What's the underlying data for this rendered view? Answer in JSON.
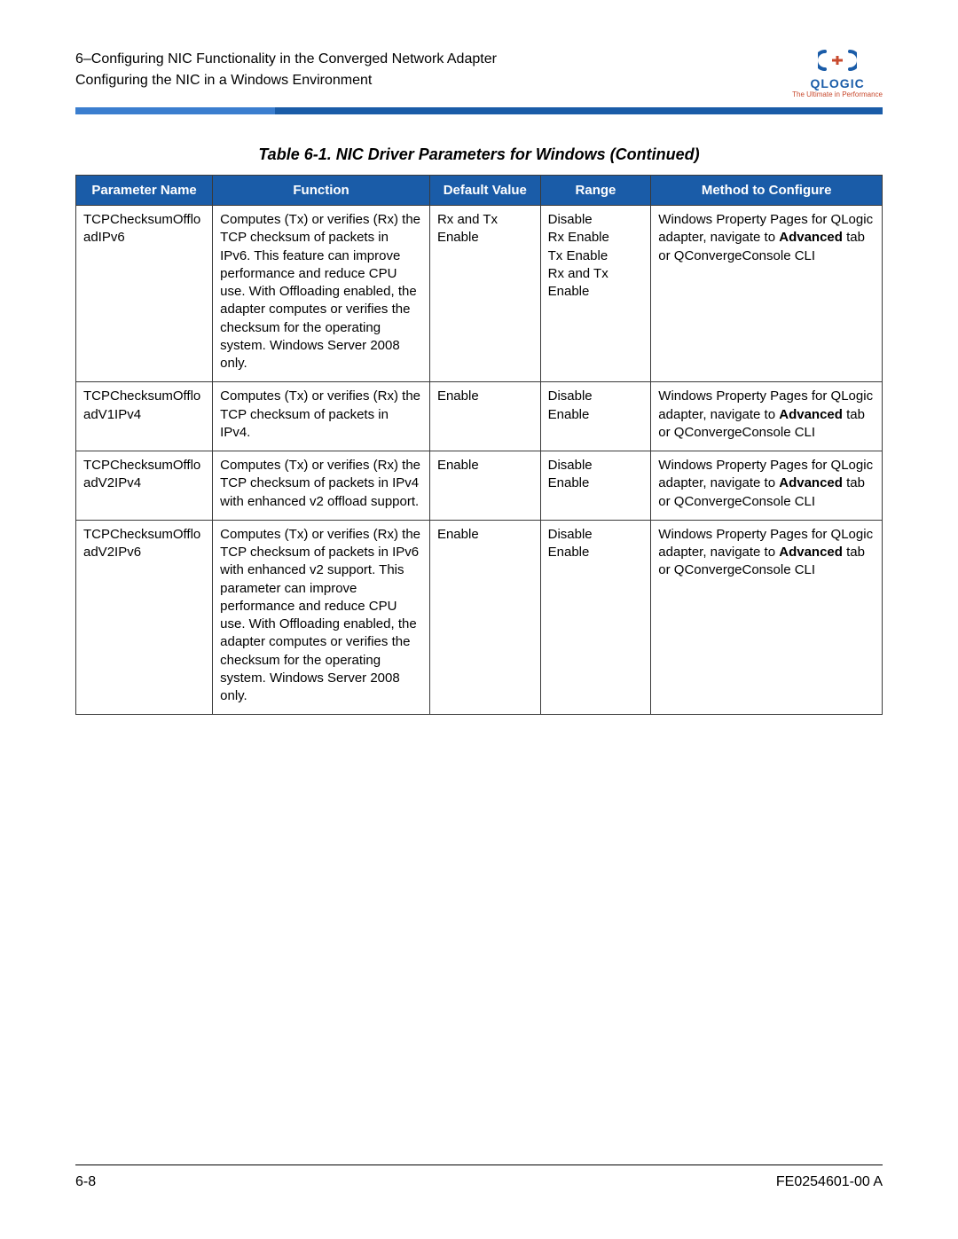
{
  "header": {
    "line1": "6–Configuring NIC Functionality in the Converged Network Adapter",
    "line2": "Configuring the NIC in a Windows Environment"
  },
  "logo": {
    "mark": "ꓛꓘC",
    "name": "QLOGIC",
    "tagline": "The Ultimate in Performance"
  },
  "caption": "Table 6-1. NIC Driver Parameters for Windows  (Continued)",
  "columns": {
    "param": "Parameter Name",
    "func": "Function",
    "def": "Default Value",
    "range": "Range",
    "method": "Method to Configure"
  },
  "method_text": {
    "prefix": "Windows Property Pages for QLogic adapter, navigate to ",
    "bold": "Advanced",
    "suffix": " tab or QConvergeConsole CLI"
  },
  "rows": [
    {
      "param": "TCPChecksumOffloadIPv6",
      "func": "Computes (Tx) or verifies (Rx) the TCP checksum of packets in IPv6. This feature can improve performance and reduce CPU use. With Offloading enabled, the adapter computes or verifies the checksum for the operating system. Windows Server 2008 only.",
      "def": "Rx and Tx Enable",
      "range": "Disable\nRx Enable\nTx Enable\nRx and Tx Enable"
    },
    {
      "param": "TCPChecksumOffloadV1IPv4",
      "func": "Computes (Tx) or verifies (Rx) the TCP checksum of packets in IPv4.",
      "def": "Enable",
      "range": "Disable\nEnable"
    },
    {
      "param": "TCPChecksumOffloadV2IPv4",
      "func": "Computes (Tx) or verifies (Rx) the TCP checksum of packets in IPv4 with enhanced v2 offload support.",
      "def": "Enable",
      "range": "Disable\nEnable"
    },
    {
      "param": "TCPChecksumOffloadV2IPv6",
      "func": "Computes (Tx) or verifies (Rx) the TCP checksum of packets in IPv6 with enhanced v2 support. This parameter can improve performance and reduce CPU use. With Offloading enabled, the adapter computes or verifies the checksum for the operating system. Windows Server 2008 only.",
      "def": "Enable",
      "range": "Disable\nEnable"
    }
  ],
  "footer": {
    "left": "6-8",
    "right": "FE0254601-00 A"
  },
  "colors": {
    "header_bg": "#1a5ca8",
    "accent_rule": "#3b7ecf",
    "logo_tag": "#c84a2e",
    "border": "#3a3a3a"
  }
}
